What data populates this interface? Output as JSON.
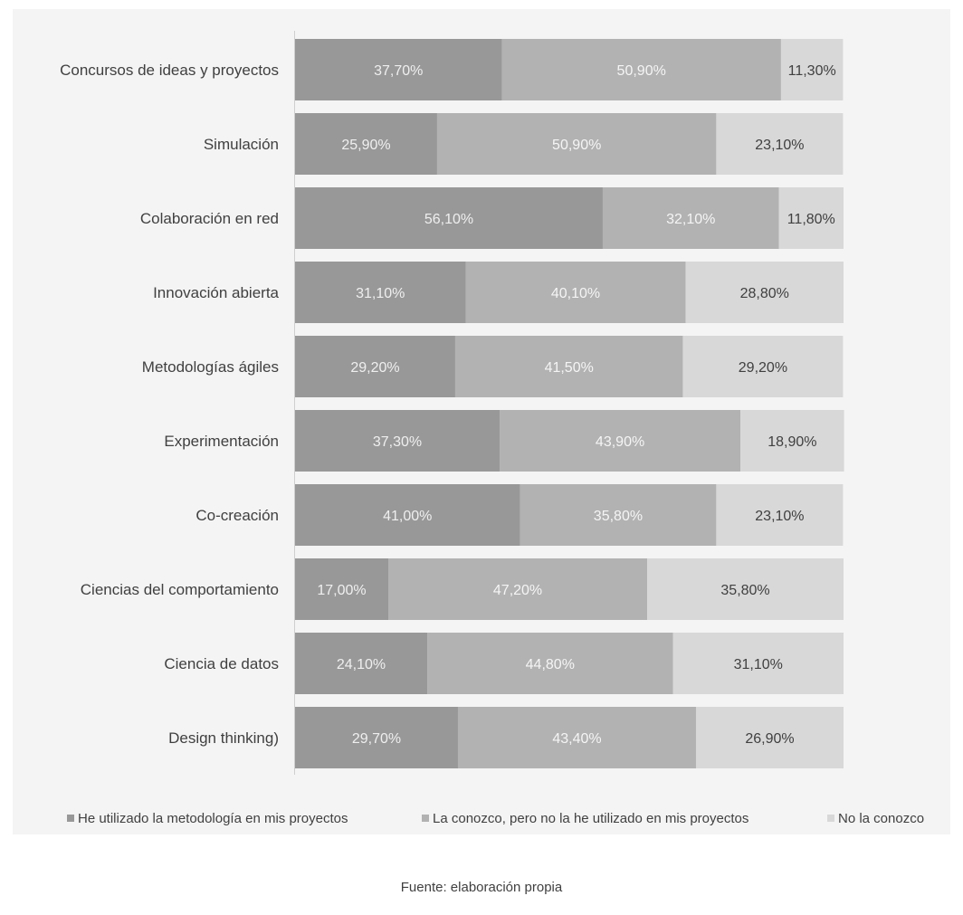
{
  "chart_data": {
    "type": "bar",
    "orientation": "horizontal",
    "stacked": true,
    "percent_stacked": true,
    "categories": [
      "Concursos de ideas y proyectos",
      "Simulación",
      "Colaboración en red",
      "Innovación abierta",
      "Metodologías ágiles",
      "Experimentación",
      "Co-creación",
      "Ciencias del comportamiento",
      "Ciencia de datos",
      "Design thinking)"
    ],
    "series": [
      {
        "name": "He utilizado la metodología en mis proyectos",
        "color": "#989898",
        "label_color": "#efefef",
        "values": [
          37.7,
          25.9,
          56.1,
          31.1,
          29.2,
          37.3,
          41.0,
          17.0,
          24.1,
          29.7
        ],
        "labels": [
          "37,70%",
          "25,90%",
          "56,10%",
          "31,10%",
          "29,20%",
          "37,30%",
          "41,00%",
          "17,00%",
          "24,10%",
          "29,70%"
        ]
      },
      {
        "name": "La conozco, pero no la he utilizado en mis proyectos",
        "color": "#b2b2b2",
        "label_color": "#f5f5f5",
        "values": [
          50.9,
          50.9,
          32.1,
          40.1,
          41.5,
          43.9,
          35.8,
          47.2,
          44.8,
          43.4
        ],
        "labels": [
          "50,90%",
          "50,90%",
          "32,10%",
          "40,10%",
          "41,50%",
          "43,90%",
          "35,80%",
          "47,20%",
          "44,80%",
          "43,40%"
        ]
      },
      {
        "name": "No la conozco",
        "color": "#d8d8d8",
        "label_color": "#404040",
        "values": [
          11.3,
          23.1,
          11.8,
          28.8,
          29.2,
          18.9,
          23.1,
          35.8,
          31.1,
          26.9
        ],
        "labels": [
          "11,30%",
          "23,10%",
          "11,80%",
          "28,80%",
          "29,20%",
          "18,90%",
          "23,10%",
          "35,80%",
          "31,10%",
          "26,90%"
        ]
      }
    ],
    "title": "",
    "xlabel": "",
    "ylabel": "",
    "xlim": [
      0,
      100
    ],
    "legend_position": "bottom",
    "source": "Fuente: elaboración propia"
  }
}
